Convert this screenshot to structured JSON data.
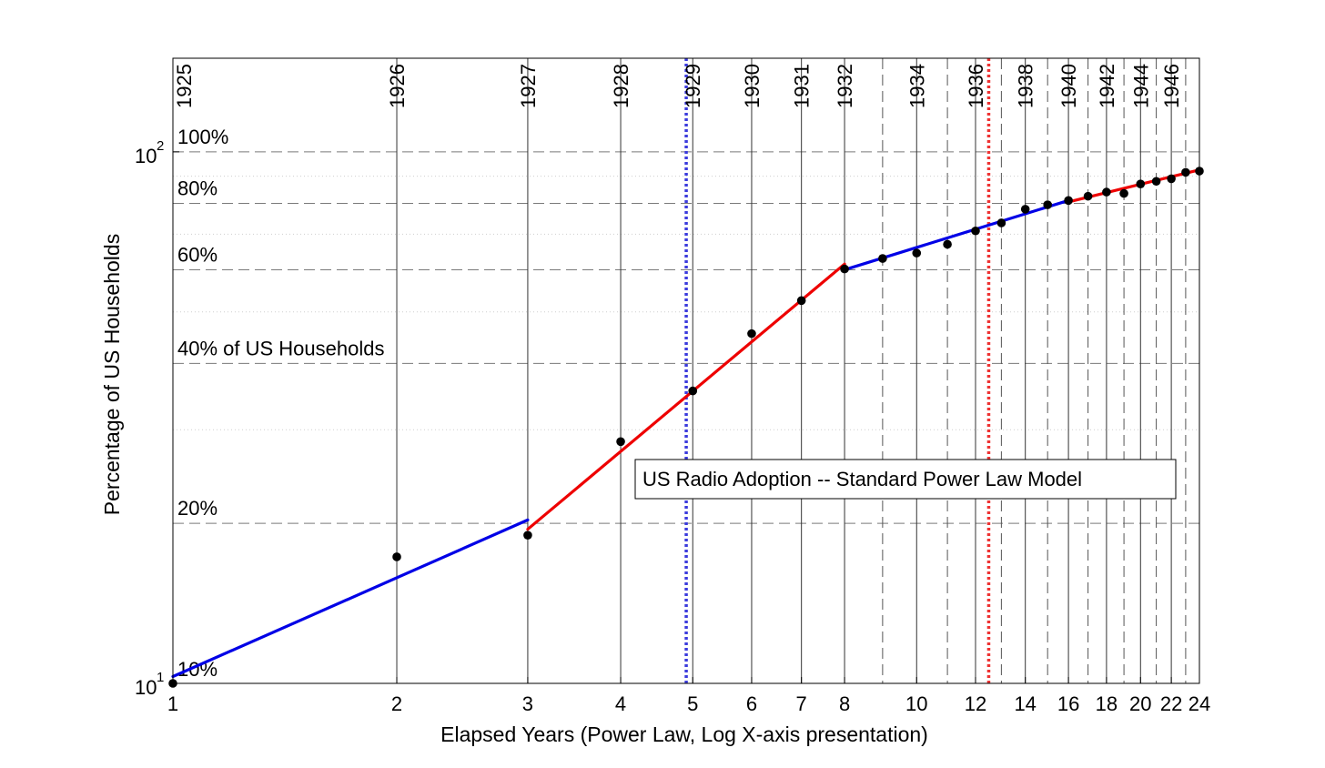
{
  "chart_data": {
    "type": "line",
    "title": "US Radio Adoption -- Standard Power Law Model",
    "xlabel": "Elapsed Years (Power Law, Log X-axis presentation)",
    "ylabel": "Percentage of US Households",
    "x_scale": "log",
    "y_scale": "log",
    "xlim": [
      1,
      24
    ],
    "ylim": [
      10,
      150
    ],
    "grid": true,
    "x_ticks": [
      {
        "value": 1,
        "label": "1"
      },
      {
        "value": 2,
        "label": "2"
      },
      {
        "value": 3,
        "label": "3"
      },
      {
        "value": 4,
        "label": "4"
      },
      {
        "value": 5,
        "label": "5"
      },
      {
        "value": 6,
        "label": "6"
      },
      {
        "value": 7,
        "label": "7"
      },
      {
        "value": 8,
        "label": "8"
      },
      {
        "value": 10,
        "label": "10"
      },
      {
        "value": 12,
        "label": "12"
      },
      {
        "value": 14,
        "label": "14"
      },
      {
        "value": 16,
        "label": "16"
      },
      {
        "value": 18,
        "label": "18"
      },
      {
        "value": 20,
        "label": "20"
      },
      {
        "value": 22,
        "label": "22"
      },
      {
        "value": 24,
        "label": "24"
      }
    ],
    "y_ticks": [
      {
        "value": 10,
        "base": "10",
        "exp": "1"
      },
      {
        "value": 100,
        "base": "10",
        "exp": "2"
      }
    ],
    "y_reference_lines": [
      {
        "value": 100,
        "label": "100%"
      },
      {
        "value": 80,
        "label": "80%"
      },
      {
        "value": 60,
        "label": "60%"
      },
      {
        "value": 40,
        "label": "40% of US Households"
      },
      {
        "value": 20,
        "label": "20%"
      },
      {
        "value": 10,
        "label": "10%"
      }
    ],
    "y_minor_dotted": [
      30,
      50,
      70,
      90
    ],
    "year_lines": [
      {
        "x": 1,
        "label": "1925",
        "style": "solid"
      },
      {
        "x": 2,
        "label": "1926",
        "style": "solid"
      },
      {
        "x": 3,
        "label": "1927",
        "style": "solid"
      },
      {
        "x": 4,
        "label": "1928",
        "style": "solid"
      },
      {
        "x": 5,
        "label": "1929",
        "style": "solid"
      },
      {
        "x": 6,
        "label": "1930",
        "style": "solid"
      },
      {
        "x": 7,
        "label": "1931",
        "style": "solid"
      },
      {
        "x": 8,
        "label": "1932",
        "style": "solid"
      },
      {
        "x": 9,
        "label": "",
        "style": "dashed"
      },
      {
        "x": 10,
        "label": "1934",
        "style": "solid"
      },
      {
        "x": 11,
        "label": "",
        "style": "dashed"
      },
      {
        "x": 12,
        "label": "1936",
        "style": "solid"
      },
      {
        "x": 13,
        "label": "",
        "style": "dashed"
      },
      {
        "x": 14,
        "label": "1938",
        "style": "solid"
      },
      {
        "x": 15,
        "label": "",
        "style": "dashed"
      },
      {
        "x": 16,
        "label": "1940",
        "style": "solid"
      },
      {
        "x": 17,
        "label": "",
        "style": "dashed"
      },
      {
        "x": 18,
        "label": "1942",
        "style": "solid"
      },
      {
        "x": 19,
        "label": "",
        "style": "dashed"
      },
      {
        "x": 20,
        "label": "1944",
        "style": "solid"
      },
      {
        "x": 21,
        "label": "",
        "style": "dashed"
      },
      {
        "x": 22,
        "label": "1946",
        "style": "solid"
      },
      {
        "x": 23,
        "label": "",
        "style": "dashed"
      }
    ],
    "marker_lines": [
      {
        "x": 4.9,
        "color": "#3b3bdc"
      },
      {
        "x": 12.5,
        "color": "#ee3333"
      }
    ],
    "points": {
      "x": [
        1,
        2,
        3,
        4,
        5,
        6,
        7,
        8,
        9,
        10,
        11,
        12,
        13,
        14,
        15,
        16,
        17,
        18,
        19,
        20,
        21,
        22,
        23,
        24
      ],
      "y": [
        10,
        17.3,
        19,
        28.5,
        35.5,
        45.5,
        52.5,
        60.2,
        63,
        64.5,
        67,
        71,
        73.5,
        78,
        79.5,
        81,
        82.5,
        84,
        83.5,
        87,
        88,
        89,
        91.5,
        92
      ]
    },
    "fit_segments": [
      {
        "x": [
          1,
          3
        ],
        "y": [
          10.3,
          20.3
        ],
        "color": "#0000e6"
      },
      {
        "x": [
          3,
          8
        ],
        "y": [
          19.5,
          61.5
        ],
        "color": "#ee0000"
      },
      {
        "x": [
          8,
          16
        ],
        "y": [
          60,
          81
        ],
        "color": "#0000e6"
      },
      {
        "x": [
          16,
          24
        ],
        "y": [
          80.5,
          92.5
        ],
        "color": "#ee0000"
      }
    ]
  }
}
